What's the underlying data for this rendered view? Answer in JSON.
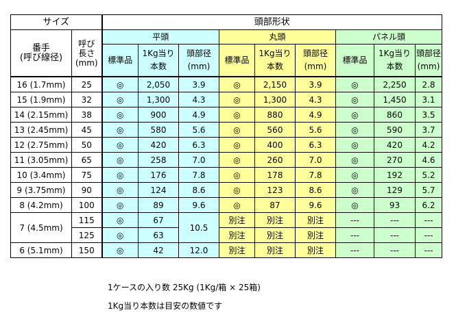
{
  "table": {
    "header": {
      "size_group": "サイズ",
      "head_shape": "頭部形状",
      "gauge_line1": "番手",
      "gauge_line2": "(呼び線径)",
      "length_line1": "呼び",
      "length_line2": "長さ",
      "length_line3": "(mm)",
      "groups": [
        "平頭",
        "丸頭",
        "パネル頭"
      ],
      "sub": {
        "standard": "標準品",
        "per_kg_line1": "1Kg当り",
        "per_kg_line2": "本数",
        "diam_line1": "頭部径",
        "diam_line2": "(mm)"
      }
    },
    "rows": [
      {
        "gauge": "16 (1.7mm)",
        "length": "25",
        "flat": [
          "◎",
          "2,050",
          "3.9"
        ],
        "round": [
          "◎",
          "2,150",
          "3.9"
        ],
        "panel": [
          "◎",
          "2,250",
          "2.8"
        ]
      },
      {
        "gauge": "15 (1.9mm)",
        "length": "32",
        "flat": [
          "◎",
          "1,300",
          "4.3"
        ],
        "round": [
          "◎",
          "1,300",
          "4.3"
        ],
        "panel": [
          "◎",
          "1,450",
          "3.1"
        ]
      },
      {
        "gauge": "14 (2.15mm)",
        "length": "38",
        "flat": [
          "◎",
          "900",
          "4.9"
        ],
        "round": [
          "◎",
          "880",
          "4.9"
        ],
        "panel": [
          "◎",
          "860",
          "3.5"
        ]
      },
      {
        "gauge": "13 (2.45mm)",
        "length": "45",
        "flat": [
          "◎",
          "580",
          "5.6"
        ],
        "round": [
          "◎",
          "560",
          "5.6"
        ],
        "panel": [
          "◎",
          "590",
          "3.7"
        ]
      },
      {
        "gauge": "12 (2.75mm)",
        "length": "50",
        "flat": [
          "◎",
          "420",
          "6.3"
        ],
        "round": [
          "◎",
          "400",
          "6.3"
        ],
        "panel": [
          "◎",
          "420",
          "4.2"
        ]
      },
      {
        "gauge": "11 (3.05mm)",
        "length": "65",
        "flat": [
          "◎",
          "258",
          "7.0"
        ],
        "round": [
          "◎",
          "260",
          "7.0"
        ],
        "panel": [
          "◎",
          "270",
          "4.6"
        ]
      },
      {
        "gauge": "10 (3.4mm)",
        "length": "75",
        "flat": [
          "◎",
          "176",
          "7.8"
        ],
        "round": [
          "◎",
          "178",
          "7.8"
        ],
        "panel": [
          "◎",
          "192",
          "5.2"
        ]
      },
      {
        "gauge": "9 (3.75mm)",
        "length": "90",
        "flat": [
          "◎",
          "124",
          "8.6"
        ],
        "round": [
          "◎",
          "123",
          "8.6"
        ],
        "panel": [
          "◎",
          "129",
          "5.7"
        ]
      },
      {
        "gauge": "8 (4.2mm)",
        "length": "100",
        "flat": [
          "◎",
          "89",
          "9.6"
        ],
        "round": [
          "◎",
          "87",
          "9.6"
        ],
        "panel": [
          "◎",
          "93",
          "6.2"
        ]
      }
    ],
    "row7": {
      "gauge": "7 (4.5mm)",
      "lengths": [
        "115",
        "125"
      ],
      "flat_std": [
        "◎",
        "◎"
      ],
      "flat_per_kg": [
        "67",
        "63"
      ],
      "flat_diam": "10.5",
      "special": "別注",
      "dash": "---"
    },
    "row6": {
      "gauge": "6 (5.1mm)",
      "length": "150",
      "flat": [
        "◎",
        "42",
        "12.0"
      ],
      "special": "別注",
      "dash": "---"
    }
  },
  "notes": [
    "1ケースの入り数  25Kg  (1Kg/箱  ×  25箱)",
    "1Kg当り本数は目安の数値です"
  ],
  "colors": {
    "flat_head": "#ccffff",
    "round_head": "#ffff99",
    "panel_head": "#ccffcc"
  }
}
